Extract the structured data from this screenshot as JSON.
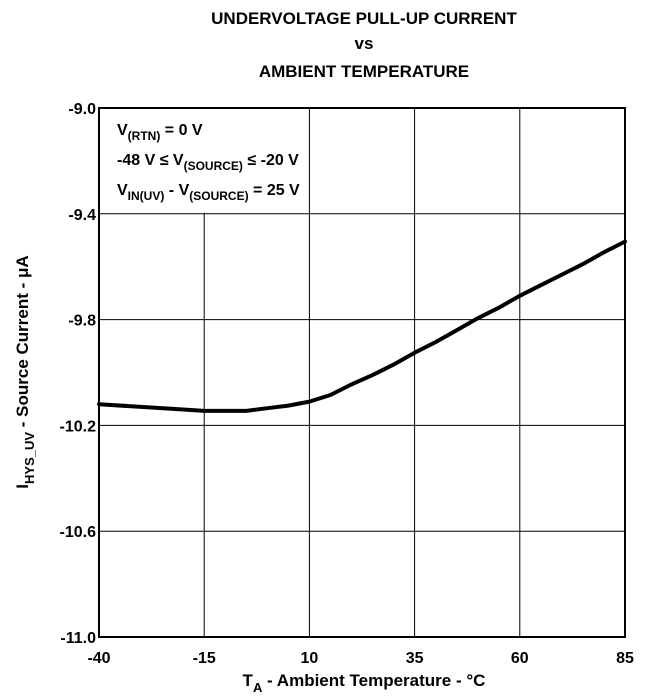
{
  "chart_data": {
    "type": "line",
    "title_lines": [
      "UNDERVOLTAGE PULL-UP CURRENT",
      "vs",
      "AMBIENT TEMPERATURE"
    ],
    "xlabel": {
      "main": "T",
      "sub": "A",
      "rest": " - Ambient Temperature - °C"
    },
    "ylabel": {
      "main": "I",
      "sub": "HYS_UV",
      "rest": " - Source Current - μA"
    },
    "xlim": [
      -40,
      85
    ],
    "ylim": [
      -11.0,
      -9.0
    ],
    "y_reversed": true,
    "grid": true,
    "xticks": [
      -40,
      -15,
      10,
      35,
      60,
      85
    ],
    "xtick_labels": [
      "-40",
      "-15",
      "10",
      "35",
      "60",
      "85"
    ],
    "yticks": [
      -9.0,
      -9.4,
      -9.8,
      -10.2,
      -10.6,
      -11.0
    ],
    "ytick_labels": [
      "-9.0",
      "-9.4",
      "-9.8",
      "-10.2",
      "-10.6",
      "-11.0"
    ],
    "annotations": [
      {
        "parts": [
          [
            "V",
            ""
          ],
          [
            "(RTN)",
            "sub"
          ],
          [
            " = 0 V",
            ""
          ]
        ]
      },
      {
        "parts": [
          [
            "-48 V ≤ V",
            ""
          ],
          [
            "(SOURCE)",
            "sub"
          ],
          [
            " ≤ -20 V",
            ""
          ]
        ]
      },
      {
        "parts": [
          [
            "V",
            ""
          ],
          [
            "IN(UV)",
            "sub"
          ],
          [
            " - V",
            ""
          ],
          [
            "(SOURCE)",
            "sub"
          ],
          [
            " = 25 V",
            ""
          ]
        ]
      }
    ],
    "series": [
      {
        "x": [
          -40,
          -30,
          -20,
          -15,
          -10,
          -5,
          0,
          5,
          10,
          15,
          20,
          25,
          30,
          35,
          40,
          45,
          50,
          55,
          60,
          65,
          70,
          75,
          80,
          85
        ],
        "y": [
          -10.12,
          -10.13,
          -10.14,
          -10.145,
          -10.145,
          -10.145,
          -10.135,
          -10.125,
          -10.11,
          -10.085,
          -10.045,
          -10.01,
          -9.97,
          -9.925,
          -9.885,
          -9.84,
          -9.795,
          -9.755,
          -9.71,
          -9.67,
          -9.63,
          -9.59,
          -9.545,
          -9.505
        ]
      }
    ]
  }
}
